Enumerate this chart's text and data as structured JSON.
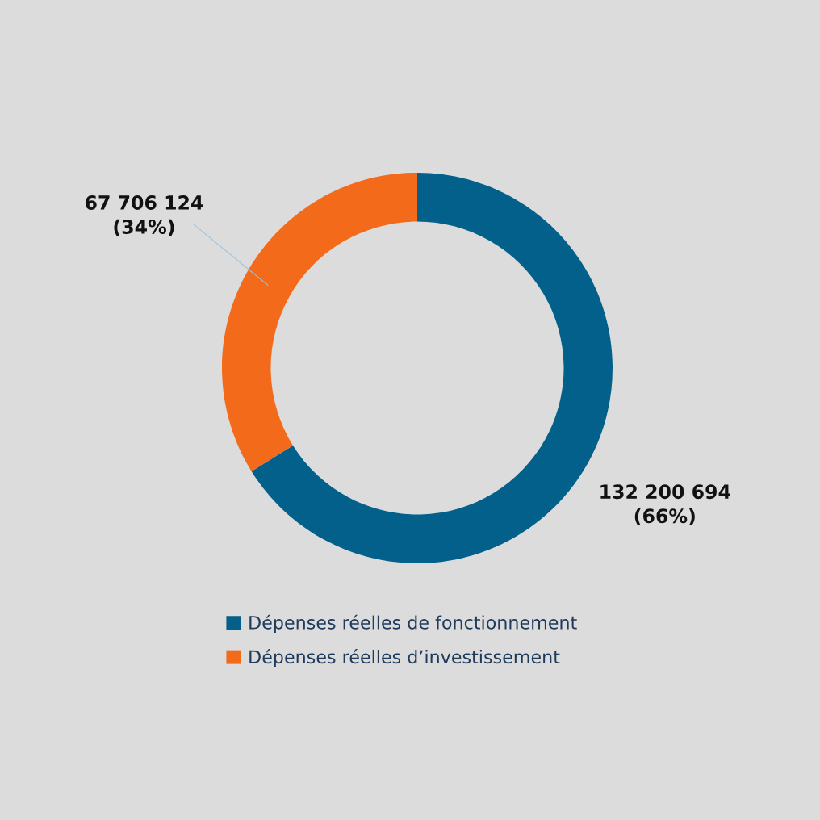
{
  "chart_data": {
    "type": "donut",
    "categories": [
      "Dépenses réelles de fonctionnement",
      "Dépenses réelles d’investissement"
    ],
    "values": [
      132200694,
      67706124
    ],
    "colors": [
      "#03608a",
      "#f26a1a"
    ],
    "value_labels": [
      "132 200 694\n(66%)",
      "67 706 124\n(34%)"
    ],
    "legend": "bottom"
  }
}
